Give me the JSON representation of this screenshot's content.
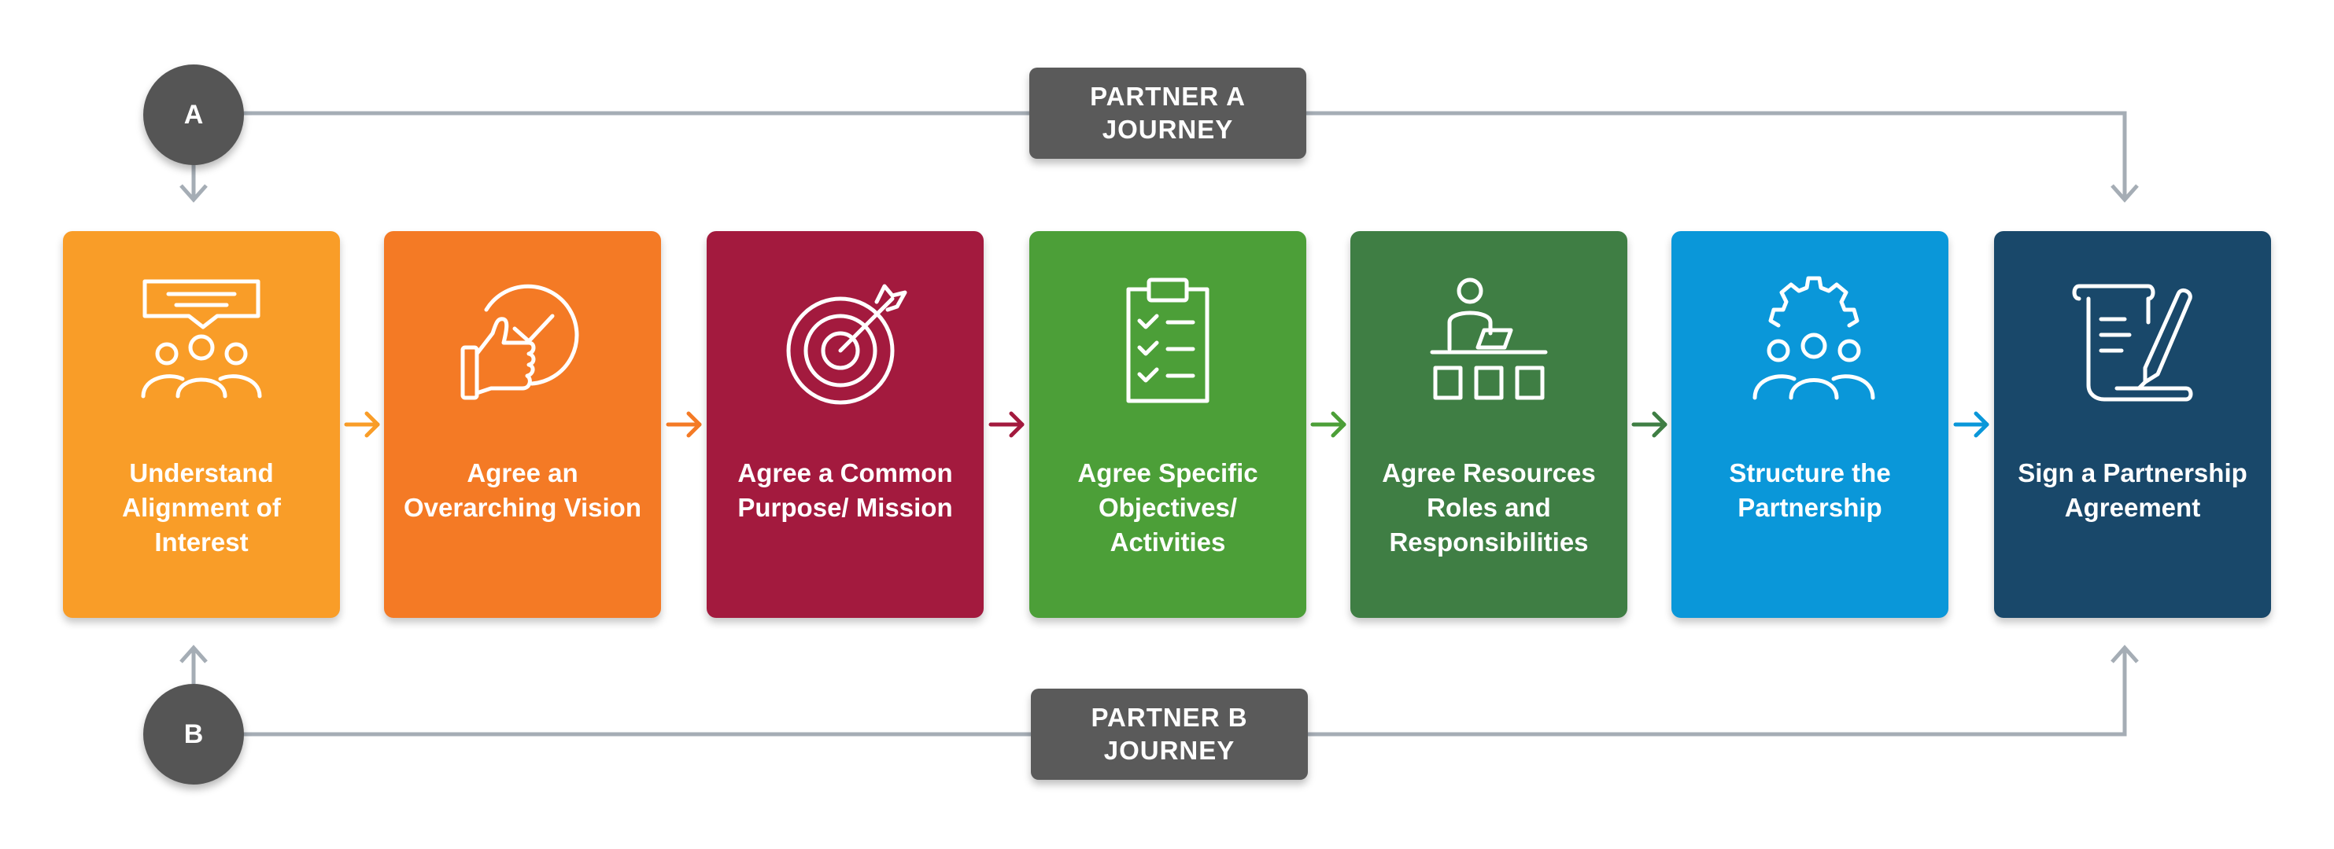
{
  "diagram": {
    "partner_a": {
      "badge": "A",
      "label": "PARTNER A JOURNEY",
      "color": "#5a5a5a"
    },
    "partner_b": {
      "badge": "B",
      "label": "PARTNER B JOURNEY",
      "color": "#5a5a5a"
    },
    "connector_color": "#a5adb5",
    "steps": [
      {
        "label": "Understand Alignment of Interest",
        "color": "#f99d28",
        "icon": "meeting-group-icon"
      },
      {
        "label": "Agree an Overarching Vision",
        "color": "#f47a25",
        "icon": "thumbs-up-check-icon"
      },
      {
        "label": "Agree a Common Purpose/ Mission",
        "color": "#a31a3e",
        "icon": "target-arrow-icon"
      },
      {
        "label": "Agree Specific Objectives/ Activities",
        "color": "#4c9f38",
        "icon": "clipboard-checklist-icon"
      },
      {
        "label": "Agree Resources Roles and Responsibilities",
        "color": "#3f7e44",
        "icon": "person-desk-resources-icon"
      },
      {
        "label": "Structure the Partnership",
        "color": "#0a97d9",
        "icon": "gear-team-icon"
      },
      {
        "label": "Sign a Partnership Agreement",
        "color": "#19486a",
        "icon": "scroll-pen-icon"
      }
    ]
  }
}
